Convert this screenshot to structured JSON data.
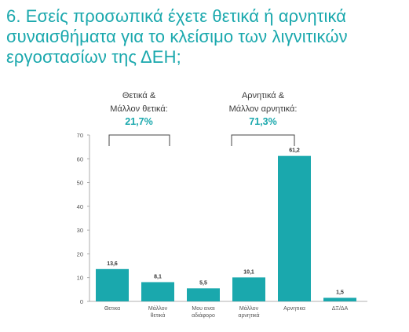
{
  "title": {
    "line1": "6. Εσείς προσωπικά έχετε θετικά ή αρνητικά",
    "line2": "συναισθήματα για το κλείσιμο των λιγνιτικών",
    "line3": "εργοστασίων της ΔΕΗ;"
  },
  "groups": [
    {
      "label_line1": "Θετικά &",
      "label_line2": "Μάλλον θετικά:",
      "percent": "21,7%"
    },
    {
      "label_line1": "Αρνητικά &",
      "label_line2": "Μάλλον αρνητικά:",
      "percent": "71,3%"
    }
  ],
  "colors": {
    "accent": "#1aa8ad",
    "bar": "#1aa8ad"
  },
  "chart_data": {
    "type": "bar",
    "categories": [
      [
        "Θετικα"
      ],
      [
        "Μάλλον",
        "θετικά"
      ],
      [
        "Μου ειναι",
        "αδιάφορο"
      ],
      [
        "Μάλλον",
        "αρνητικά"
      ],
      [
        "Αρνητικα"
      ],
      [
        "ΔΞ/ΔΑ"
      ]
    ],
    "values": [
      13.6,
      8.1,
      5.5,
      10.1,
      61.2,
      1.5
    ],
    "value_labels": [
      "13,6",
      "8,1",
      "5,5",
      "10,1",
      "61,2",
      "1,5"
    ],
    "yticks": [
      0,
      10,
      20,
      30,
      40,
      50,
      60,
      70
    ],
    "ylim": [
      0,
      70
    ],
    "grid": false
  }
}
